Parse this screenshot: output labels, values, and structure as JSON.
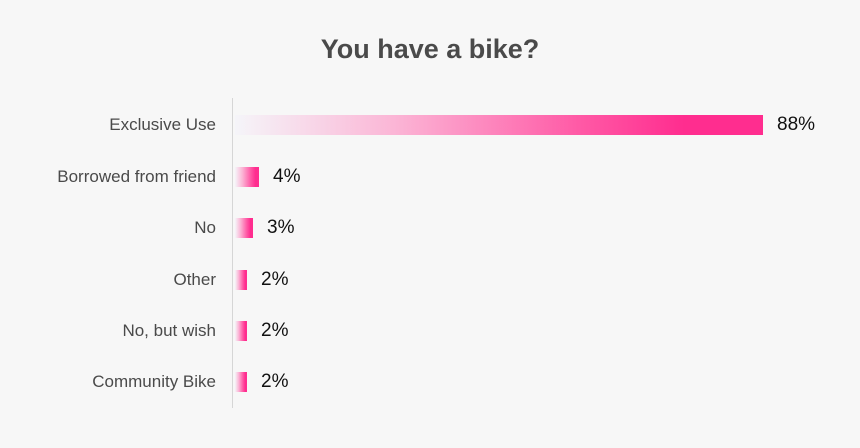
{
  "chart_data": {
    "type": "bar",
    "orientation": "horizontal",
    "title": "You have a bike?",
    "categories": [
      "Exclusive Use",
      "Borrowed from friend",
      "No",
      "Other",
      "No, but wish",
      "Community Bike"
    ],
    "values": [
      88,
      4,
      3,
      2,
      2,
      2
    ],
    "value_labels": [
      "88%",
      "4%",
      "3%",
      "2%",
      "2%",
      "2%"
    ],
    "xlabel": "",
    "ylabel": "",
    "xlim": [
      0,
      100
    ],
    "grid": false,
    "legend": null,
    "bar_gradient": [
      "#f5f5f9",
      "#ff2d8f"
    ]
  }
}
